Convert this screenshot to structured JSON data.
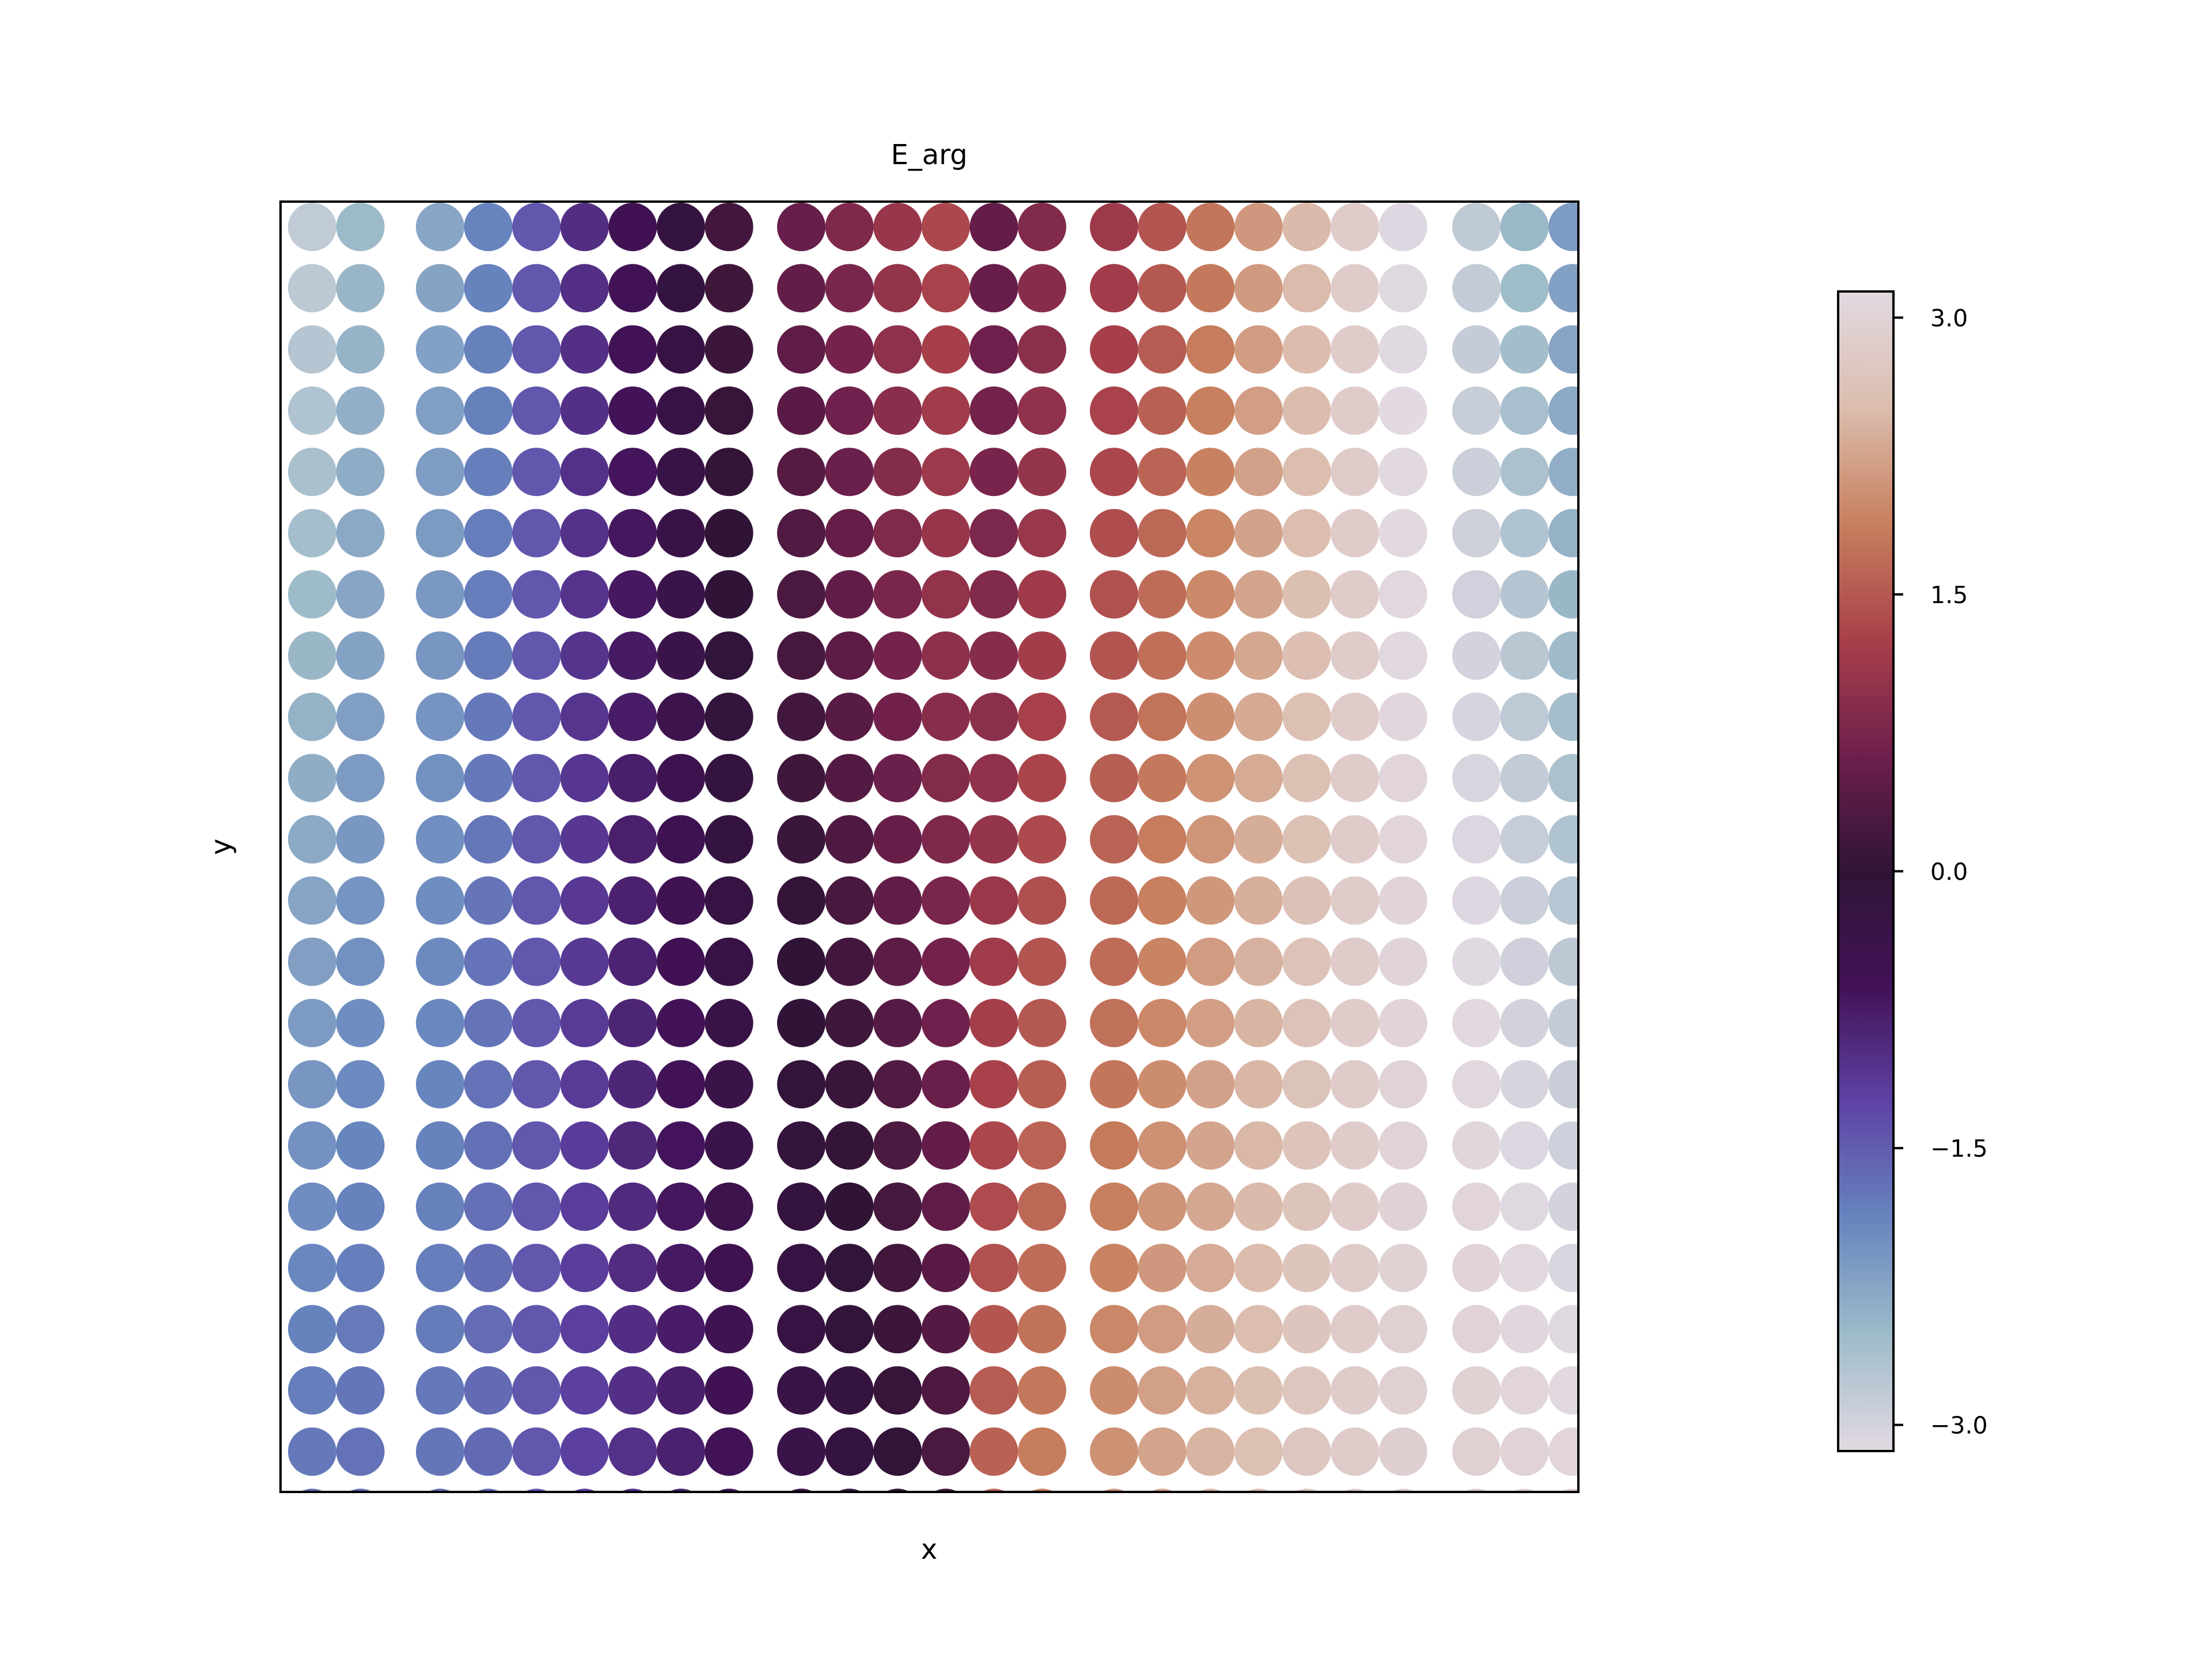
{
  "chart_data": {
    "type": "scatter",
    "title": "E_arg",
    "xlabel": "x",
    "ylabel": "y",
    "x_ticks_visible": false,
    "y_ticks_visible": false,
    "grid": false,
    "colormap": "twilight",
    "colorbar": {
      "vmin": -3.14159,
      "vmax": 3.14159,
      "ticks": [
        -3.0,
        -1.5,
        0.0,
        1.5,
        3.0
      ],
      "tick_labels": [
        "−3.0",
        "−1.5",
        "0.0",
        "1.5",
        "3.0"
      ],
      "placement": "right"
    },
    "colormap_stops": [
      "#e2d9e2",
      "#9ebbc9",
      "#6785be",
      "#5e43a5",
      "#421257",
      "#2f1436",
      "#6e1f4c",
      "#a8404a",
      "#c8805e",
      "#dbbdae",
      "#e2d9e2"
    ],
    "columns_visible": 27,
    "rows_visible": 21,
    "field": "E_arg values vary smoothly: approximately linear in x (slope ~0.75 per column) and y, wrapping at ±π"
  }
}
